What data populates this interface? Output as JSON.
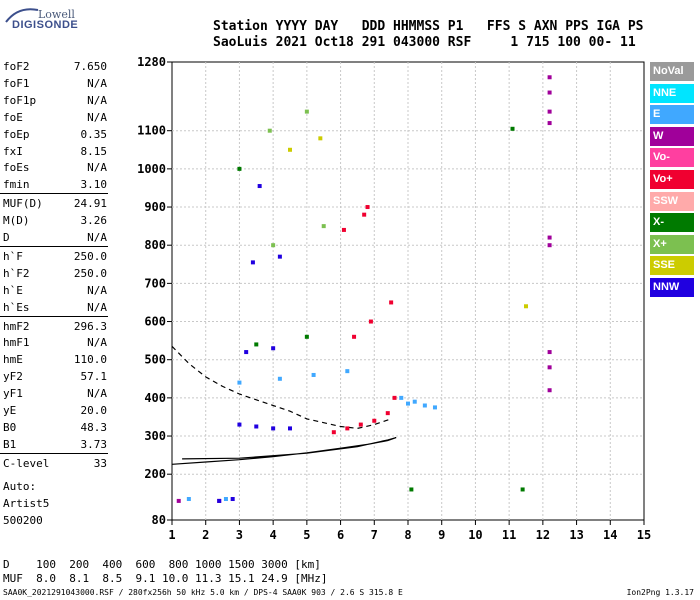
{
  "logo": {
    "line1": "Lowell",
    "line2": "DIGISONDE"
  },
  "header": {
    "line1": "Station YYYY DAY   DDD HHMMSS P1   FFS S AXN PPS IGA PS",
    "line2": "SaoLuis 2021 Oct18 291 043000 RSF     1 715 100 00- 11"
  },
  "params": [
    {
      "name": "foF2",
      "value": "7.650"
    },
    {
      "name": "foF1",
      "value": "N/A"
    },
    {
      "name": "foF1p",
      "value": "N/A"
    },
    {
      "name": "foE",
      "value": "N/A"
    },
    {
      "name": "foEp",
      "value": "0.35"
    },
    {
      "name": "fxI",
      "value": "8.15"
    },
    {
      "name": "foEs",
      "value": "N/A"
    },
    {
      "name": "fmin",
      "value": "3.10"
    },
    {
      "name": "MUF(D)",
      "value": "24.91"
    },
    {
      "name": "M(D)",
      "value": "3.26"
    },
    {
      "name": "D",
      "value": "N/A"
    },
    {
      "name": "h`F",
      "value": "250.0"
    },
    {
      "name": "h`F2",
      "value": "250.0"
    },
    {
      "name": "h`E",
      "value": "N/A"
    },
    {
      "name": "h`Es",
      "value": "N/A"
    },
    {
      "name": "hmF2",
      "value": "296.3"
    },
    {
      "name": "hmF1",
      "value": "N/A"
    },
    {
      "name": "hmE",
      "value": "110.0"
    },
    {
      "name": "yF2",
      "value": "57.1"
    },
    {
      "name": "yF1",
      "value": "N/A"
    },
    {
      "name": "yE",
      "value": "20.0"
    },
    {
      "name": "B0",
      "value": "48.3"
    },
    {
      "name": "B1",
      "value": "3.73"
    },
    {
      "name": "C-level",
      "value": "33"
    }
  ],
  "autoscale": {
    "line1": "Auto:",
    "line2": "Artist5",
    "line3": "500200"
  },
  "bottom": {
    "d_row": "D    100  200  400  600  800 1000 1500 3000 [km]",
    "muf_row": "MUF  8.0  8.1  8.5  9.1 10.0 11.3 15.1 24.9 [MHz]"
  },
  "footer": {
    "left": "SAA0K_2021291043000.RSF / 280fx256h 50 kHz 5.0 km / DPS-4 SAA0K 903 / 2.6 S 315.8 E",
    "right": "Ion2Png 1.3.17"
  },
  "legend": [
    {
      "label": "NoVal",
      "color": "#9a9a9a"
    },
    {
      "label": "NNE",
      "color": "#00e5ff"
    },
    {
      "label": "E",
      "color": "#40a8ff"
    },
    {
      "label": "W",
      "color": "#a0009a"
    },
    {
      "label": "Vo-",
      "color": "#ff3fa0"
    },
    {
      "label": "Vo+",
      "color": "#f00030"
    },
    {
      "label": "SSW",
      "color": "#ffaaaa"
    },
    {
      "label": "X-",
      "color": "#007a00"
    },
    {
      "label": "X+",
      "color": "#7cc050"
    },
    {
      "label": "SSE",
      "color": "#cccc00"
    },
    {
      "label": "NNW",
      "color": "#2000e0"
    }
  ],
  "chart_data": {
    "type": "scatter",
    "title": "",
    "xlabel": "",
    "ylabel": "",
    "x_ticks": [
      1,
      2,
      3,
      4,
      5,
      6,
      7,
      8,
      9,
      10,
      11,
      12,
      13,
      14,
      15
    ],
    "y_ticks": [
      80,
      200,
      300,
      400,
      500,
      600,
      700,
      800,
      900,
      1000,
      1100,
      1280
    ],
    "xlim": [
      1,
      15
    ],
    "ylim": [
      80,
      1280
    ],
    "grid": true,
    "series": [
      {
        "name": "E",
        "color": "#40a8ff",
        "points": [
          [
            7.8,
            400
          ],
          [
            8.2,
            390
          ],
          [
            8.5,
            380
          ],
          [
            8.8,
            375
          ],
          [
            5.2,
            460
          ],
          [
            6.2,
            470
          ],
          [
            4.2,
            450
          ],
          [
            1.5,
            135
          ],
          [
            2.6,
            135
          ],
          [
            3.0,
            440
          ],
          [
            8.0,
            385
          ]
        ]
      },
      {
        "name": "W",
        "color": "#a0009a",
        "points": [
          [
            12.2,
            1240
          ],
          [
            12.2,
            1200
          ],
          [
            12.2,
            1150
          ],
          [
            12.2,
            1120
          ],
          [
            12.2,
            820
          ],
          [
            12.2,
            800
          ],
          [
            12.2,
            520
          ],
          [
            12.2,
            480
          ],
          [
            12.2,
            420
          ],
          [
            1.2,
            130
          ],
          [
            2.4,
            130
          ]
        ]
      },
      {
        "name": "Vo+",
        "color": "#f00030",
        "points": [
          [
            5.8,
            310
          ],
          [
            6.2,
            320
          ],
          [
            6.6,
            330
          ],
          [
            7.0,
            340
          ],
          [
            7.4,
            360
          ],
          [
            7.6,
            400
          ],
          [
            6.4,
            560
          ],
          [
            6.9,
            600
          ],
          [
            7.5,
            650
          ],
          [
            6.1,
            840
          ],
          [
            6.7,
            880
          ],
          [
            6.8,
            900
          ]
        ]
      },
      {
        "name": "NNW",
        "color": "#2000e0",
        "points": [
          [
            3.0,
            330
          ],
          [
            3.5,
            325
          ],
          [
            4.0,
            320
          ],
          [
            4.5,
            320
          ],
          [
            3.2,
            520
          ],
          [
            4.0,
            530
          ],
          [
            3.4,
            755
          ],
          [
            4.2,
            770
          ],
          [
            3.6,
            955
          ],
          [
            2.4,
            130
          ],
          [
            2.8,
            135
          ]
        ]
      },
      {
        "name": "X-",
        "color": "#007a00",
        "points": [
          [
            3.5,
            540
          ],
          [
            5.0,
            560
          ],
          [
            3.0,
            1000
          ],
          [
            11.1,
            1105
          ],
          [
            11.4,
            160
          ],
          [
            8.1,
            160
          ]
        ]
      },
      {
        "name": "X+",
        "color": "#7cc050",
        "points": [
          [
            4.0,
            800
          ],
          [
            5.5,
            850
          ],
          [
            3.9,
            1100
          ],
          [
            5.0,
            1150
          ]
        ]
      },
      {
        "name": "SSE",
        "color": "#cccc00",
        "points": [
          [
            4.5,
            1050
          ],
          [
            5.4,
            1080
          ],
          [
            11.5,
            640
          ]
        ]
      }
    ],
    "curves": [
      {
        "name": "hmF2 profile",
        "style": "solid",
        "points": [
          [
            1,
            226
          ],
          [
            2,
            232
          ],
          [
            3,
            238
          ],
          [
            4,
            246
          ],
          [
            5,
            256
          ],
          [
            6,
            268
          ],
          [
            6.8,
            278
          ],
          [
            7.4,
            288
          ],
          [
            7.65,
            296
          ],
          [
            7.4,
            290
          ],
          [
            6.5,
            272
          ],
          [
            5,
            255
          ],
          [
            3,
            242
          ],
          [
            1.3,
            240
          ]
        ]
      },
      {
        "name": "MUF(D) curve",
        "style": "dashed",
        "points": [
          [
            1,
            535
          ],
          [
            1.5,
            490
          ],
          [
            2,
            455
          ],
          [
            2.5,
            430
          ],
          [
            3,
            410
          ],
          [
            3.5,
            395
          ],
          [
            4,
            380
          ],
          [
            4.5,
            365
          ],
          [
            5,
            345
          ],
          [
            5.5,
            335
          ],
          [
            6,
            325
          ],
          [
            6.5,
            320
          ],
          [
            7.0,
            330
          ],
          [
            7.5,
            345
          ]
        ]
      }
    ]
  }
}
